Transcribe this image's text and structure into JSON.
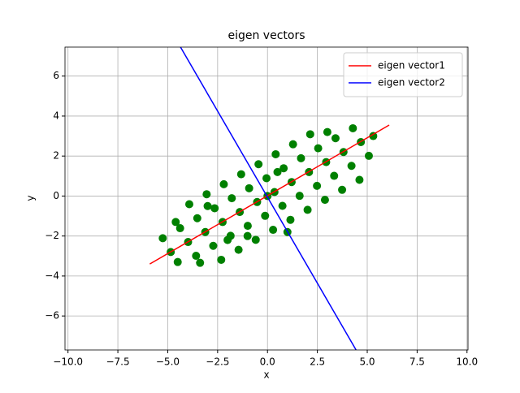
{
  "chart_data": {
    "type": "scatter",
    "title": "eigen vectors",
    "x_label": "x",
    "y_label": "y",
    "xlim": [
      -10.15,
      10.05
    ],
    "ylim": [
      -7.7,
      7.45
    ],
    "grid": true,
    "legend": "upper right",
    "xticks": [
      {
        "value": -10,
        "label": "−10.0"
      },
      {
        "value": -7.5,
        "label": "−7.5"
      },
      {
        "value": -5,
        "label": "−5.0"
      },
      {
        "value": -2.5,
        "label": "−2.5"
      },
      {
        "value": 0,
        "label": "0.0"
      },
      {
        "value": 2.5,
        "label": "2.5"
      },
      {
        "value": 5,
        "label": "5.0"
      },
      {
        "value": 7.5,
        "label": "7.5"
      },
      {
        "value": 10,
        "label": "10.0"
      }
    ],
    "yticks": [
      {
        "value": -6,
        "label": "−6"
      },
      {
        "value": -4,
        "label": "−4"
      },
      {
        "value": -2,
        "label": "−2"
      },
      0,
      2,
      4,
      6
    ],
    "points": {
      "color": "#008000",
      "x": [
        -4.85,
        -4.5,
        -5.25,
        -3.98,
        -3.38,
        -3.58,
        -4.38,
        -4.6,
        -3.12,
        -2.32,
        -2.72,
        -3.52,
        -3.92,
        -2.25,
        -1.45,
        -1.85,
        -2.65,
        -3.05,
        -1.39,
        -0.59,
        -0.99,
        -1.79,
        -2.19,
        -0.52,
        0.28,
        -0.12,
        -0.92,
        -1.32,
        0.35,
        1.15,
        0.75,
        -0.05,
        -0.45,
        1.21,
        2.01,
        1.61,
        0.81,
        0.41,
        2.08,
        2.88,
        2.48,
        1.68,
        1.28,
        2.94,
        3.74,
        3.34,
        2.54,
        2.14,
        3.81,
        4.21,
        3.41,
        4.61,
        4.68,
        5.08,
        4.28,
        5.3,
        -1.0,
        0.5,
        1.0,
        -2.0,
        3.0,
        -3.0,
        0.0
      ],
      "y": [
        -2.8,
        -3.3,
        -2.11,
        -2.3,
        -3.34,
        -2.99,
        -1.61,
        -1.3,
        -1.8,
        -3.19,
        -2.49,
        -1.11,
        -0.41,
        -1.3,
        -2.69,
        -1.99,
        -0.61,
        0.09,
        -0.8,
        -2.19,
        -1.49,
        -0.11,
        0.59,
        -0.3,
        -1.69,
        -0.99,
        0.39,
        1.09,
        0.2,
        -1.19,
        -0.49,
        0.89,
        1.59,
        0.7,
        -0.69,
        0.01,
        1.39,
        2.09,
        1.2,
        -0.19,
        0.51,
        1.89,
        2.59,
        1.7,
        0.31,
        1.01,
        2.39,
        3.09,
        2.2,
        1.51,
        2.89,
        0.81,
        2.7,
        2.01,
        3.39,
        3.0,
        -2.0,
        1.2,
        -1.8,
        -2.2,
        3.2,
        -0.5,
        0.0
      ]
    },
    "series": [
      {
        "name": "eigen vector1",
        "color": "#ff0000",
        "x": [
          -5.9,
          6.1
        ],
        "y": [
          -3.4,
          3.55
        ]
      },
      {
        "name": "eigen vector2",
        "color": "#0000ff",
        "x": [
          -4.36,
          4.44
        ],
        "y": [
          7.45,
          -7.7
        ]
      }
    ]
  }
}
